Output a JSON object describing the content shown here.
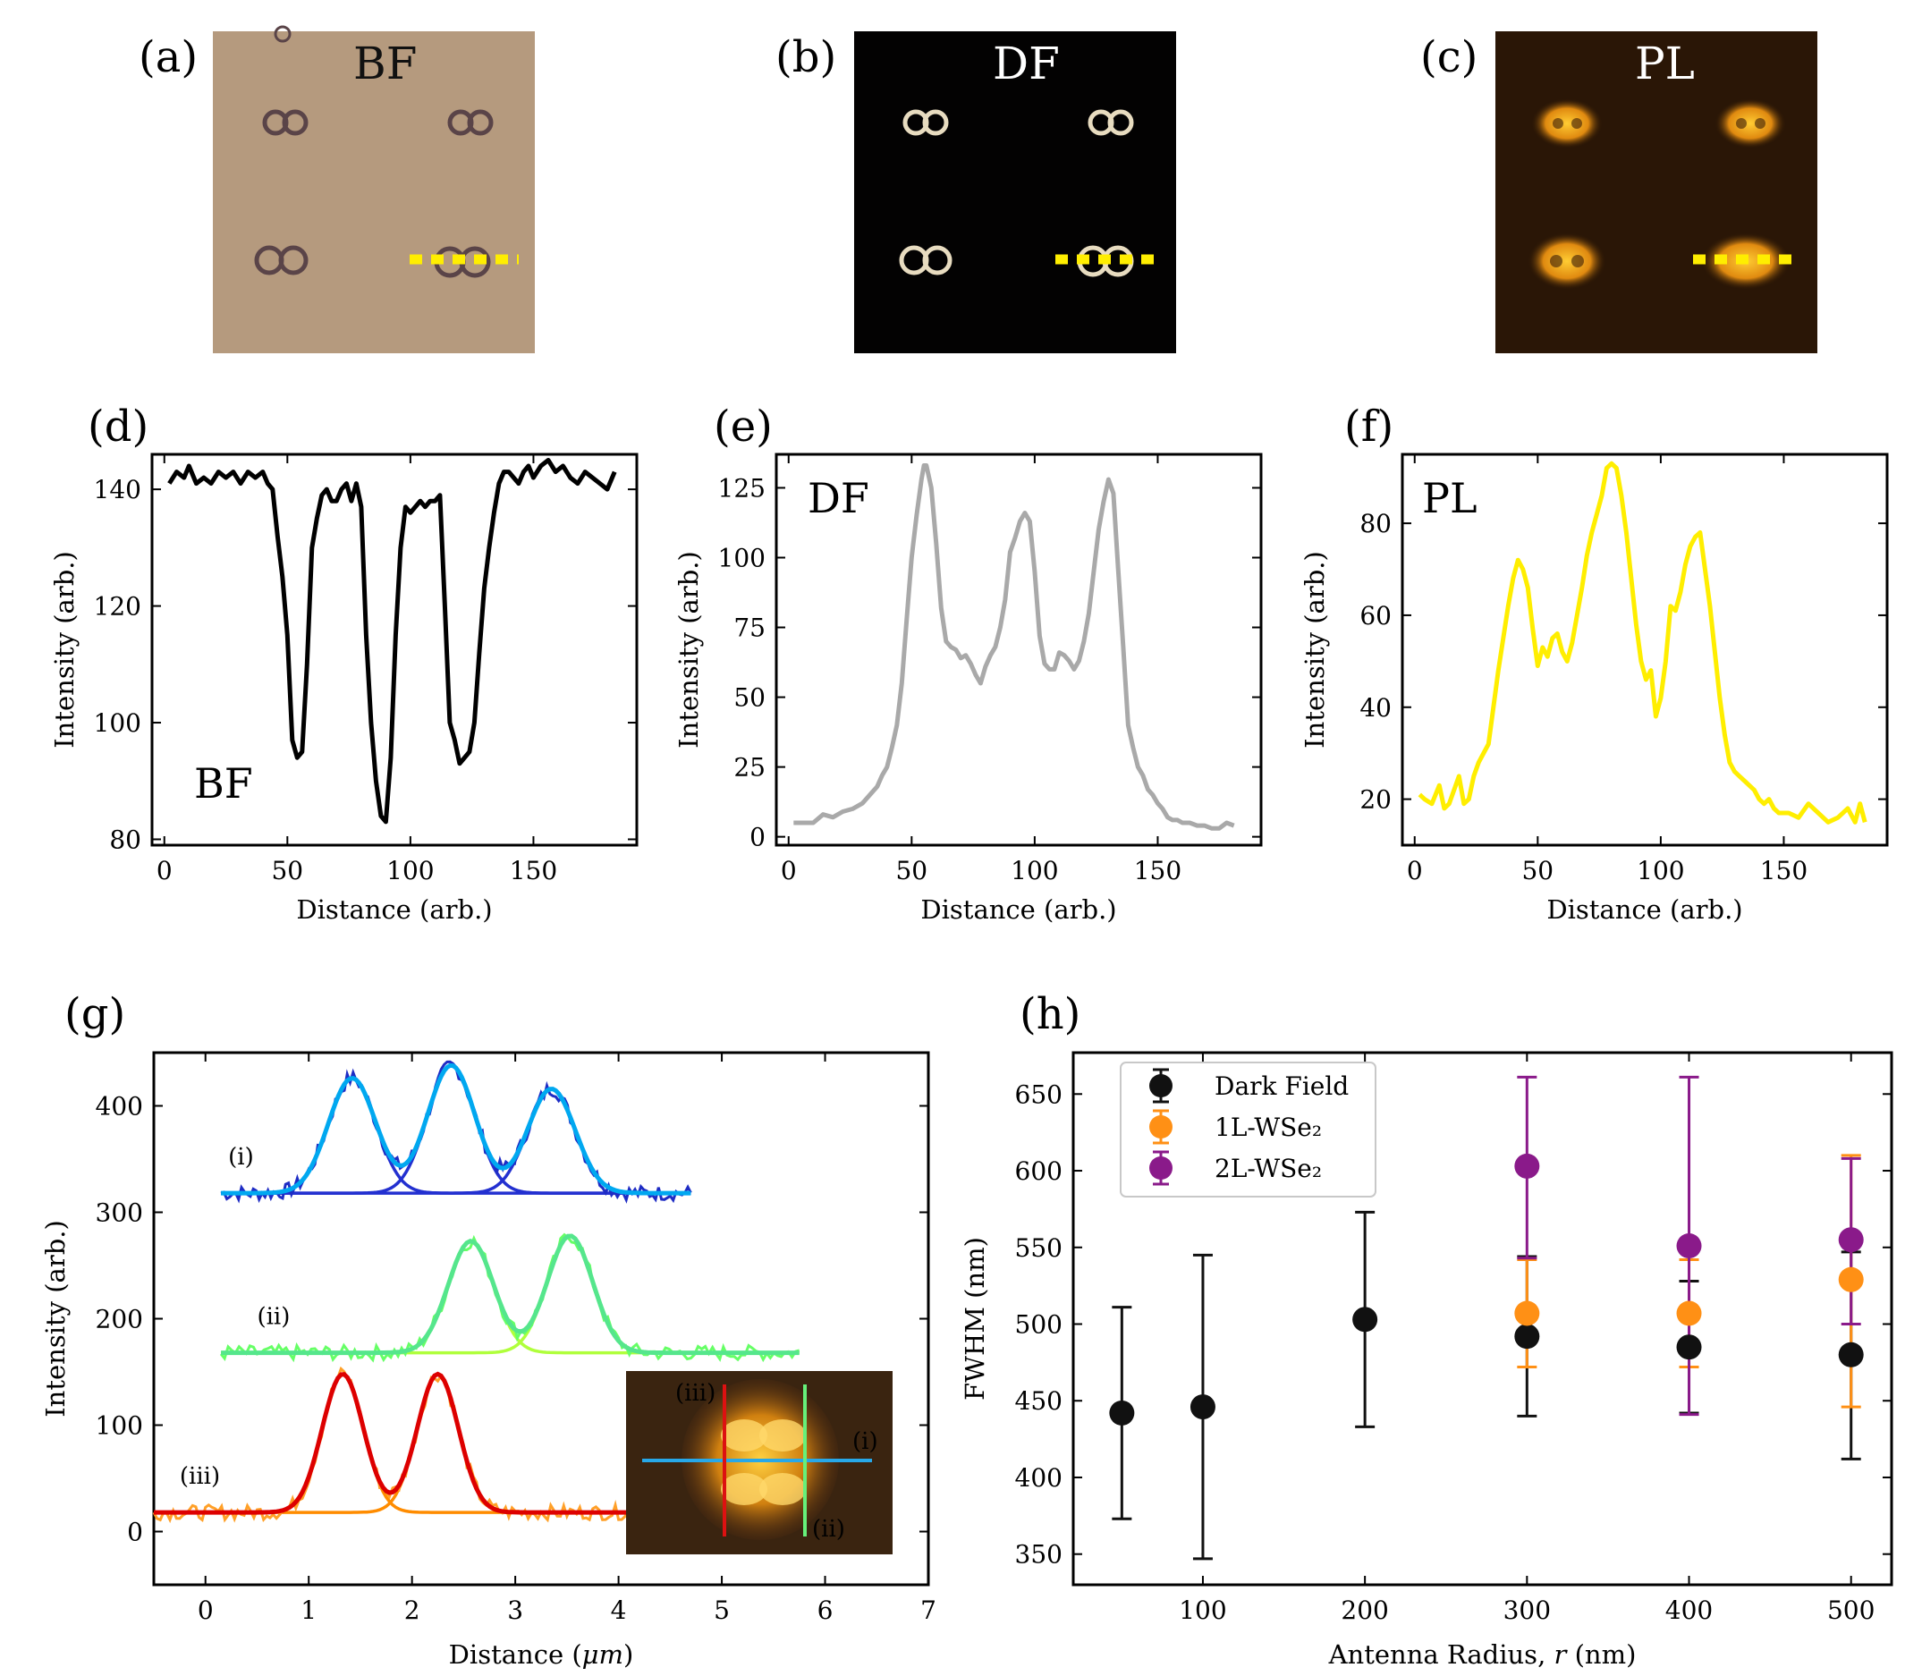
{
  "panels": {
    "a": {
      "label": "(a)",
      "title": "BF",
      "bg": "#b59a7e",
      "ring": "#5a4448"
    },
    "b": {
      "label": "(b)",
      "title": "DF",
      "bg": "#030202",
      "ring": "#e8dcc0"
    },
    "c": {
      "label": "(c)",
      "title": "PL",
      "bg": "#2a1606",
      "ring": "#f0a020"
    },
    "d": {
      "label": "(d)",
      "inset": "BF"
    },
    "e": {
      "label": "(e)",
      "inset": "DF"
    },
    "f": {
      "label": "(f)",
      "inset": "PL"
    },
    "g": {
      "label": "(g)"
    },
    "h": {
      "label": "(h)"
    }
  },
  "marker_color": "#ffee00",
  "chart_data": [
    {
      "id": "d",
      "type": "line",
      "xlabel": "Distance (arb.)",
      "ylabel": "Intensity (arb.)",
      "xlim": [
        -5,
        192
      ],
      "ylim": [
        79,
        146
      ],
      "xticks": [
        0,
        50,
        100,
        150
      ],
      "yticks": [
        80,
        100,
        120,
        140
      ],
      "color": "#000000",
      "x": [
        2,
        5,
        8,
        10,
        13,
        16,
        19,
        22,
        25,
        28,
        31,
        34,
        37,
        40,
        42,
        44,
        46,
        48,
        50,
        52,
        54,
        56,
        58,
        60,
        62,
        64,
        66,
        68,
        70,
        72,
        74,
        76,
        78,
        80,
        82,
        84,
        86,
        88,
        90,
        92,
        94,
        96,
        98,
        100,
        102,
        104,
        106,
        108,
        110,
        112,
        114,
        116,
        118,
        120,
        122,
        124,
        126,
        128,
        130,
        132,
        134,
        136,
        138,
        140,
        142,
        144,
        146,
        148,
        150,
        153,
        156,
        159,
        162,
        165,
        168,
        171,
        174,
        177,
        180,
        183
      ],
      "y": [
        141,
        143,
        142,
        144,
        141,
        142,
        141,
        143,
        142,
        143,
        141,
        143,
        142,
        143,
        141,
        140,
        132,
        125,
        115,
        97,
        94,
        95,
        110,
        130,
        135,
        139,
        140,
        138,
        138,
        140,
        141,
        138,
        141,
        137,
        115,
        100,
        90,
        84,
        83,
        94,
        115,
        130,
        137,
        136,
        137,
        138,
        137,
        138,
        138,
        139,
        120,
        100,
        97,
        93,
        94,
        95,
        100,
        112,
        123,
        130,
        136,
        141,
        143,
        143,
        142,
        141,
        143,
        144,
        142,
        144,
        145,
        143,
        144,
        142,
        141,
        143,
        142,
        141,
        140,
        143
      ]
    },
    {
      "id": "e",
      "type": "line",
      "xlabel": "Distance (arb.)",
      "ylabel": "Intensity (arb.)",
      "xlim": [
        -5,
        192
      ],
      "ylim": [
        -3,
        137
      ],
      "xticks": [
        0,
        50,
        100,
        150
      ],
      "yticks": [
        0,
        25,
        50,
        75,
        100,
        125
      ],
      "color": "#a9a9a9",
      "x": [
        2,
        6,
        10,
        14,
        18,
        22,
        26,
        30,
        34,
        36,
        38,
        40,
        42,
        44,
        46,
        48,
        50,
        52,
        54,
        55,
        56,
        58,
        60,
        62,
        64,
        66,
        68,
        70,
        72,
        74,
        76,
        78,
        80,
        82,
        84,
        86,
        88,
        90,
        92,
        94,
        96,
        98,
        100,
        102,
        104,
        106,
        108,
        110,
        112,
        114,
        116,
        118,
        120,
        122,
        124,
        126,
        128,
        130,
        132,
        134,
        136,
        138,
        140,
        142,
        144,
        146,
        148,
        150,
        152,
        154,
        156,
        158,
        160,
        163,
        166,
        169,
        172,
        175,
        178,
        181
      ],
      "y": [
        5,
        5,
        5,
        8,
        7,
        9,
        10,
        12,
        16,
        18,
        22,
        25,
        32,
        40,
        55,
        78,
        100,
        115,
        128,
        133,
        133,
        125,
        105,
        82,
        70,
        68,
        67,
        64,
        65,
        62,
        58,
        55,
        61,
        65,
        68,
        75,
        85,
        102,
        107,
        113,
        116,
        113,
        95,
        72,
        62,
        60,
        60,
        66,
        65,
        63,
        60,
        63,
        70,
        80,
        95,
        110,
        120,
        128,
        123,
        95,
        68,
        40,
        32,
        25,
        22,
        17,
        15,
        12,
        10,
        7,
        6,
        6,
        5,
        5,
        4,
        4,
        3,
        3,
        5,
        4
      ]
    },
    {
      "id": "f",
      "type": "line",
      "xlabel": "Distance (arb.)",
      "ylabel": "Intensity (arb.)",
      "xlim": [
        -5,
        192
      ],
      "ylim": [
        10,
        95
      ],
      "xticks": [
        0,
        50,
        100,
        150
      ],
      "yticks": [
        20,
        40,
        60,
        80
      ],
      "color": "#ffee00",
      "x": [
        2,
        4,
        7,
        10,
        12,
        14,
        16,
        18,
        20,
        22,
        24,
        26,
        28,
        30,
        32,
        34,
        36,
        38,
        40,
        42,
        44,
        46,
        48,
        50,
        52,
        54,
        56,
        58,
        60,
        62,
        64,
        66,
        68,
        70,
        72,
        74,
        76,
        78,
        80,
        82,
        84,
        86,
        88,
        90,
        92,
        94,
        96,
        98,
        100,
        102,
        104,
        106,
        108,
        110,
        112,
        114,
        116,
        118,
        120,
        122,
        124,
        126,
        128,
        130,
        132,
        134,
        136,
        138,
        140,
        142,
        144,
        146,
        148,
        152,
        156,
        160,
        164,
        168,
        172,
        176,
        179,
        181,
        183
      ],
      "y": [
        21,
        20,
        19,
        23,
        18,
        19,
        22,
        25,
        19,
        20,
        25,
        28,
        30,
        32,
        40,
        48,
        55,
        62,
        68,
        72,
        70,
        66,
        57,
        49,
        53,
        51,
        55,
        56,
        52,
        50,
        54,
        60,
        66,
        73,
        78,
        82,
        86,
        92,
        93,
        92,
        86,
        78,
        68,
        58,
        50,
        46,
        48,
        38,
        42,
        50,
        62,
        61,
        65,
        71,
        75,
        77,
        78,
        70,
        62,
        52,
        42,
        34,
        28,
        26,
        25,
        24,
        23,
        22,
        20,
        19,
        20,
        18,
        17,
        17,
        16,
        19,
        17,
        15,
        16,
        18,
        15,
        19,
        15
      ]
    },
    {
      "id": "g",
      "type": "line",
      "xlabel": "Distance (μm)",
      "ylabel": "Intensity (arb.)",
      "xlim": [
        -0.5,
        7
      ],
      "ylim": [
        -50,
        450
      ],
      "xticks": [
        0,
        1,
        2,
        3,
        4,
        5,
        6,
        7
      ],
      "yticks": [
        0,
        100,
        200,
        300,
        400
      ],
      "series": [
        {
          "name": "(i)",
          "x0": 0.15,
          "x1": 4.7,
          "baseline": 318,
          "data_color": "#1e2cc4",
          "fit_color": "#00a8f0",
          "component_color": "#2330d0",
          "peaks": [
            {
              "center": 1.42,
              "height": 108,
              "sigma": 0.23
            },
            {
              "center": 2.38,
              "height": 120,
              "sigma": 0.23
            },
            {
              "center": 3.35,
              "height": 98,
              "sigma": 0.23
            }
          ]
        },
        {
          "name": "(ii)",
          "x0": 0.15,
          "x1": 5.75,
          "baseline": 168,
          "data_color": "#66ff66",
          "fit_color": "#55e68c",
          "component_color": "#b0ff3c",
          "peaks": [
            {
              "center": 2.57,
              "height": 105,
              "sigma": 0.22
            },
            {
              "center": 3.53,
              "height": 110,
              "sigma": 0.22
            }
          ]
        },
        {
          "name": "(iii)",
          "x0": -0.5,
          "x1": 4.5,
          "baseline": 18,
          "data_color": "#ffa028",
          "fit_color": "#dd0000",
          "component_color": "#ff8c00",
          "peaks": [
            {
              "center": 1.33,
              "height": 130,
              "sigma": 0.2
            },
            {
              "center": 2.25,
              "height": 130,
              "sigma": 0.2
            }
          ]
        }
      ],
      "inset_labels": {
        "i": "(i)",
        "ii": "(ii)",
        "iii": "(iii)"
      }
    },
    {
      "id": "h",
      "type": "scatter",
      "xlabel": "Antenna Radius, r (nm)",
      "ylabel": "FWHM (nm)",
      "xlim": [
        20,
        525
      ],
      "ylim": [
        330,
        677
      ],
      "xticks": [
        100,
        200,
        300,
        400,
        500
      ],
      "yticks": [
        350,
        400,
        450,
        500,
        550,
        600,
        650
      ],
      "series": [
        {
          "name": "Dark Field",
          "color": "#111111",
          "x": [
            50,
            100,
            200,
            300,
            400,
            500
          ],
          "y": [
            442,
            446,
            503,
            492,
            485,
            480
          ],
          "yerr_low": [
            373,
            347,
            433,
            440,
            442,
            412
          ],
          "yerr_high": [
            511,
            545,
            573,
            544,
            528,
            547
          ]
        },
        {
          "name": "1L-WSe₂",
          "color": "#ff9015",
          "x": [
            300,
            400,
            500
          ],
          "y": [
            507,
            507,
            529
          ],
          "yerr_low": [
            472,
            472,
            446
          ],
          "yerr_high": [
            542,
            542,
            610
          ]
        },
        {
          "name": "2L-WSe₂",
          "color": "#8a1a8a",
          "x": [
            300,
            400,
            500
          ],
          "y": [
            603,
            551,
            555
          ],
          "yerr_low": [
            543,
            441,
            500
          ],
          "yerr_high": [
            661,
            661,
            608
          ]
        }
      ]
    }
  ]
}
